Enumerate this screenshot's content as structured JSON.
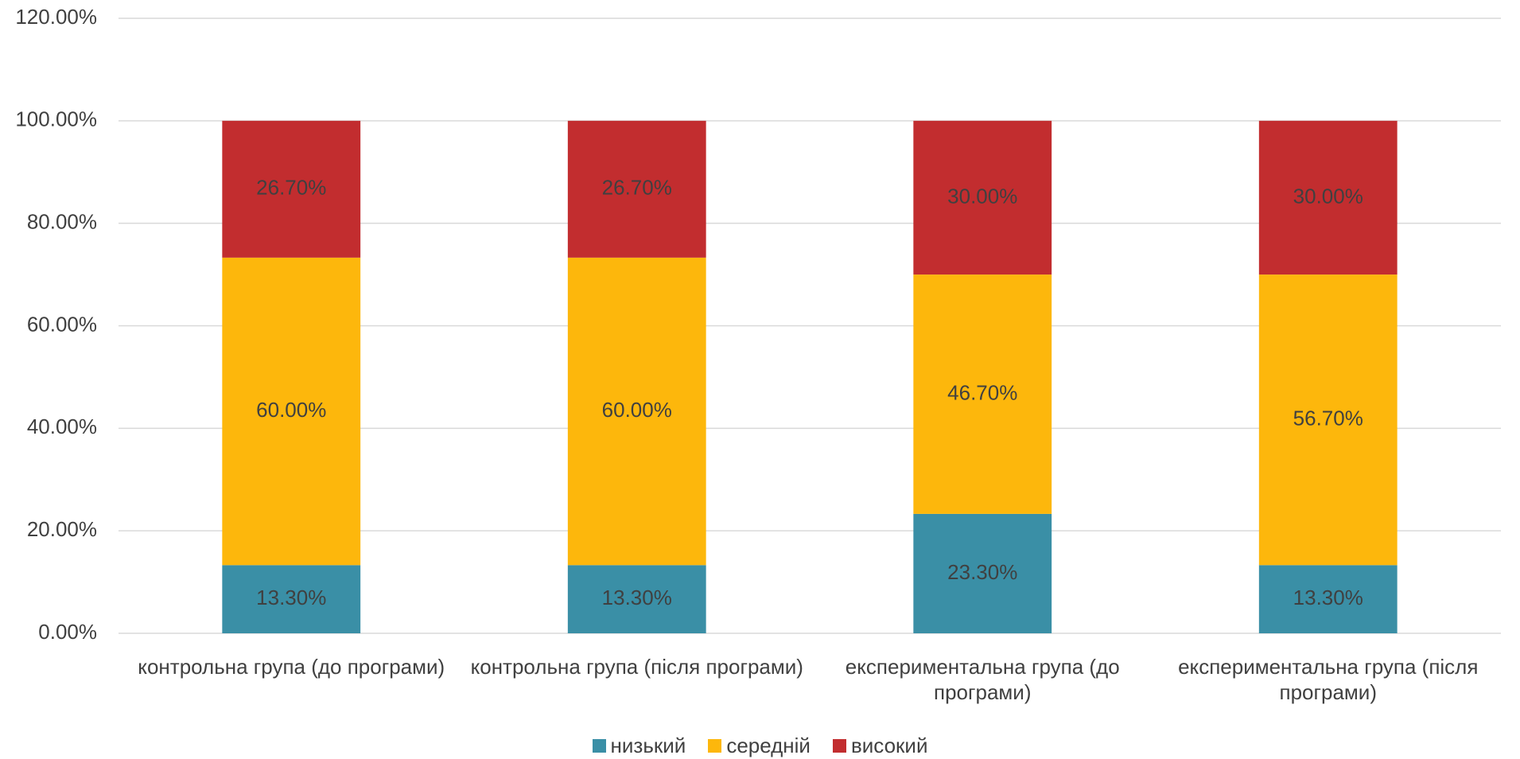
{
  "chart_data": {
    "type": "stacked_bar",
    "categories": [
      "контрольна група (до програми)",
      "контрольна група (після програми)",
      "експериментальна група (до програми)",
      "експериментальна група (після програми)"
    ],
    "series": [
      {
        "name": "низький",
        "color": "#3a8fa6",
        "values": [
          13.3,
          13.3,
          23.3,
          13.3
        ],
        "value_labels": [
          "13.30%",
          "13.30%",
          "23.30%",
          "13.30%"
        ]
      },
      {
        "name": "середній",
        "color": "#fdb70c",
        "values": [
          60,
          60,
          46.7,
          56.7
        ],
        "value_labels": [
          "60.00%",
          "60.00%",
          "46.70%",
          "56.70%"
        ]
      },
      {
        "name": "високий",
        "color": "#c22d2f",
        "values": [
          26.7,
          26.7,
          30,
          30
        ],
        "value_labels": [
          "26.70%",
          "26.70%",
          "30.00%",
          "30.00%"
        ]
      }
    ],
    "ylim": [
      0,
      120
    ],
    "yticks": [
      {
        "value": 0,
        "label": "0.00%"
      },
      {
        "value": 20,
        "label": "20.00%"
      },
      {
        "value": 40,
        "label": "40.00%"
      },
      {
        "value": 60,
        "label": "60.00%"
      },
      {
        "value": 80,
        "label": "80.00%"
      },
      {
        "value": 100,
        "label": "100.00%"
      },
      {
        "value": 120,
        "label": "120.00%"
      }
    ],
    "grid": true,
    "legend": "bottom"
  }
}
